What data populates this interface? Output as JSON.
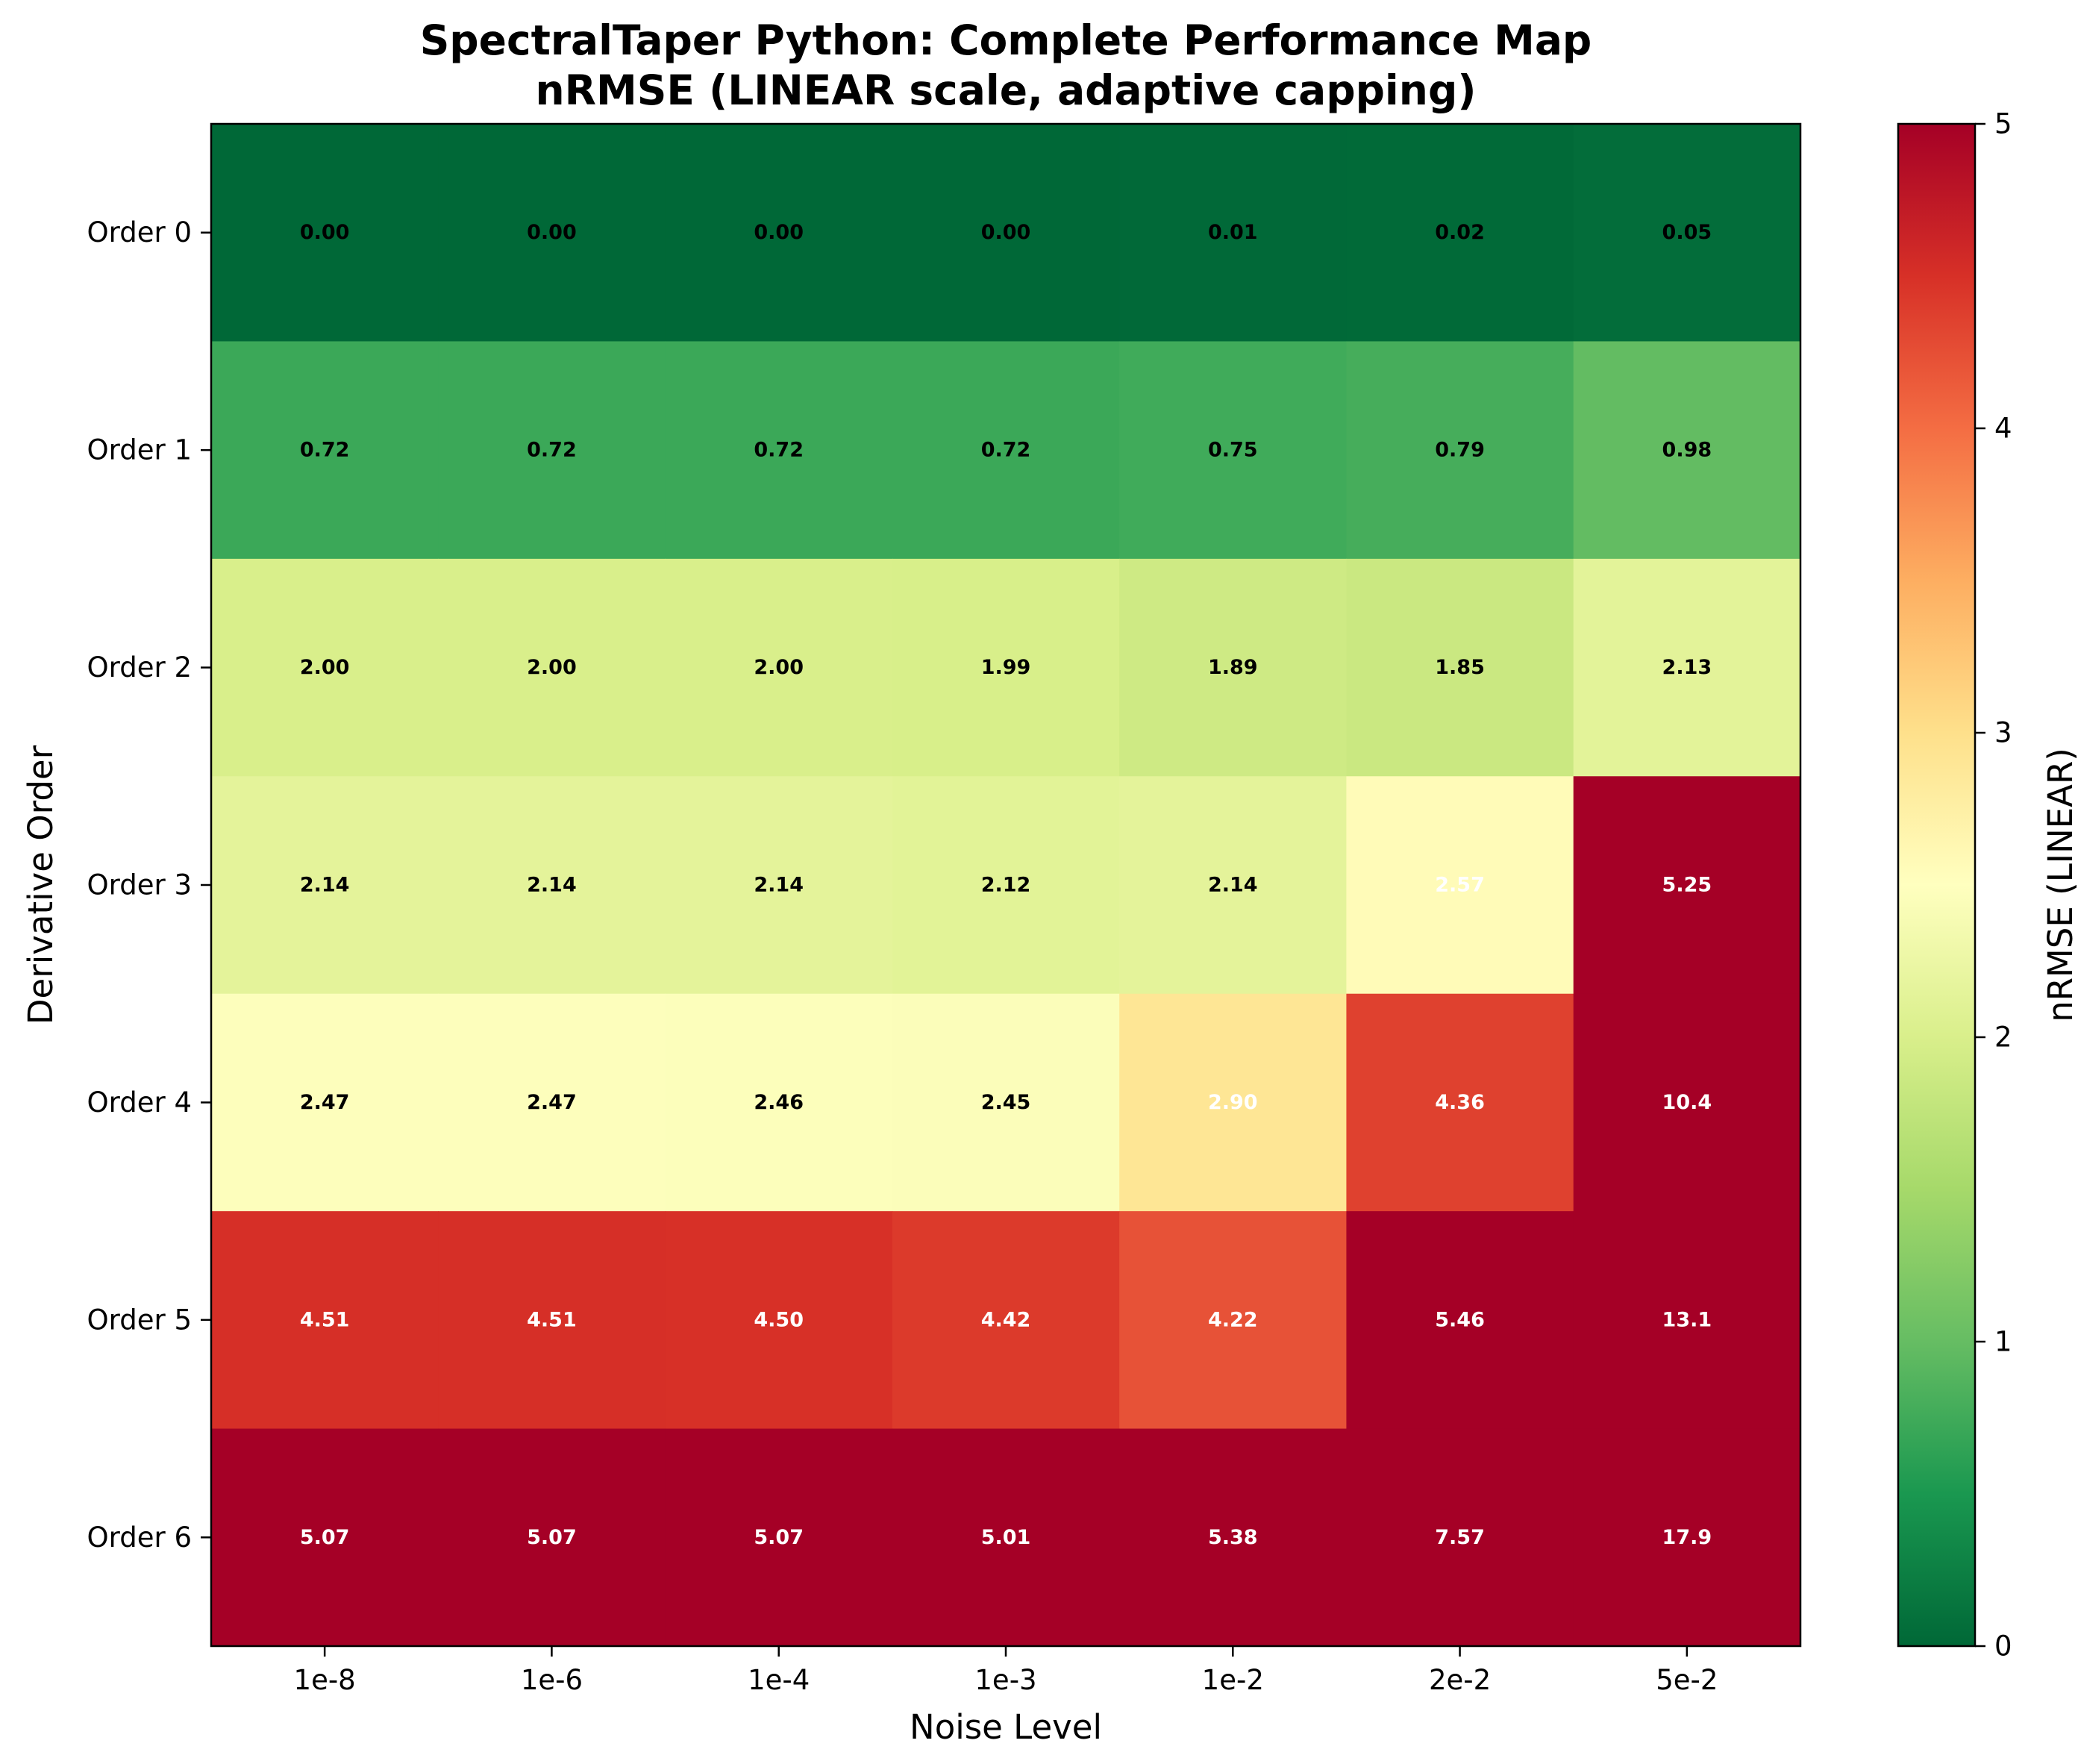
{
  "chart_data": {
    "type": "heatmap",
    "title": "SpectralTaper Python: Complete Performance Map",
    "subtitle": "nRMSE (LINEAR scale, adaptive capping)",
    "xlabel": "Noise Level",
    "ylabel": "Derivative Order",
    "x_categories": [
      "1e-8",
      "1e-6",
      "1e-4",
      "1e-3",
      "1e-2",
      "2e-2",
      "5e-2"
    ],
    "y_categories": [
      "Order 0",
      "Order 1",
      "Order 2",
      "Order 3",
      "Order 4",
      "Order 5",
      "Order 6"
    ],
    "values": [
      [
        0.0,
        0.0,
        0.0,
        0.0,
        0.01,
        0.02,
        0.05
      ],
      [
        0.72,
        0.72,
        0.72,
        0.72,
        0.75,
        0.79,
        0.98
      ],
      [
        2.0,
        2.0,
        2.0,
        1.99,
        1.89,
        1.85,
        2.13
      ],
      [
        2.14,
        2.14,
        2.14,
        2.12,
        2.14,
        2.57,
        5.25
      ],
      [
        2.47,
        2.47,
        2.46,
        2.45,
        2.9,
        4.36,
        10.4
      ],
      [
        4.51,
        4.51,
        4.5,
        4.42,
        4.22,
        5.46,
        13.1
      ],
      [
        5.07,
        5.07,
        5.07,
        5.01,
        5.38,
        7.57,
        17.9
      ]
    ],
    "labels": [
      [
        "0.00",
        "0.00",
        "0.00",
        "0.00",
        "0.01",
        "0.02",
        "0.05"
      ],
      [
        "0.72",
        "0.72",
        "0.72",
        "0.72",
        "0.75",
        "0.79",
        "0.98"
      ],
      [
        "2.00",
        "2.00",
        "2.00",
        "1.99",
        "1.89",
        "1.85",
        "2.13"
      ],
      [
        "2.14",
        "2.14",
        "2.14",
        "2.12",
        "2.14",
        "2.57",
        "5.25"
      ],
      [
        "2.47",
        "2.47",
        "2.46",
        "2.45",
        "2.90",
        "4.36",
        "10.4"
      ],
      [
        "4.51",
        "4.51",
        "4.50",
        "4.42",
        "4.22",
        "5.46",
        "13.1"
      ],
      [
        "5.07",
        "5.07",
        "5.07",
        "5.01",
        "5.38",
        "7.57",
        "17.9"
      ]
    ],
    "colorbar": {
      "label": "nRMSE (LINEAR)",
      "range": [
        0,
        5
      ],
      "ticks": [
        "0",
        "1",
        "2",
        "3",
        "4",
        "5"
      ],
      "colormap": "RdYlGn_r"
    },
    "grid": false
  }
}
